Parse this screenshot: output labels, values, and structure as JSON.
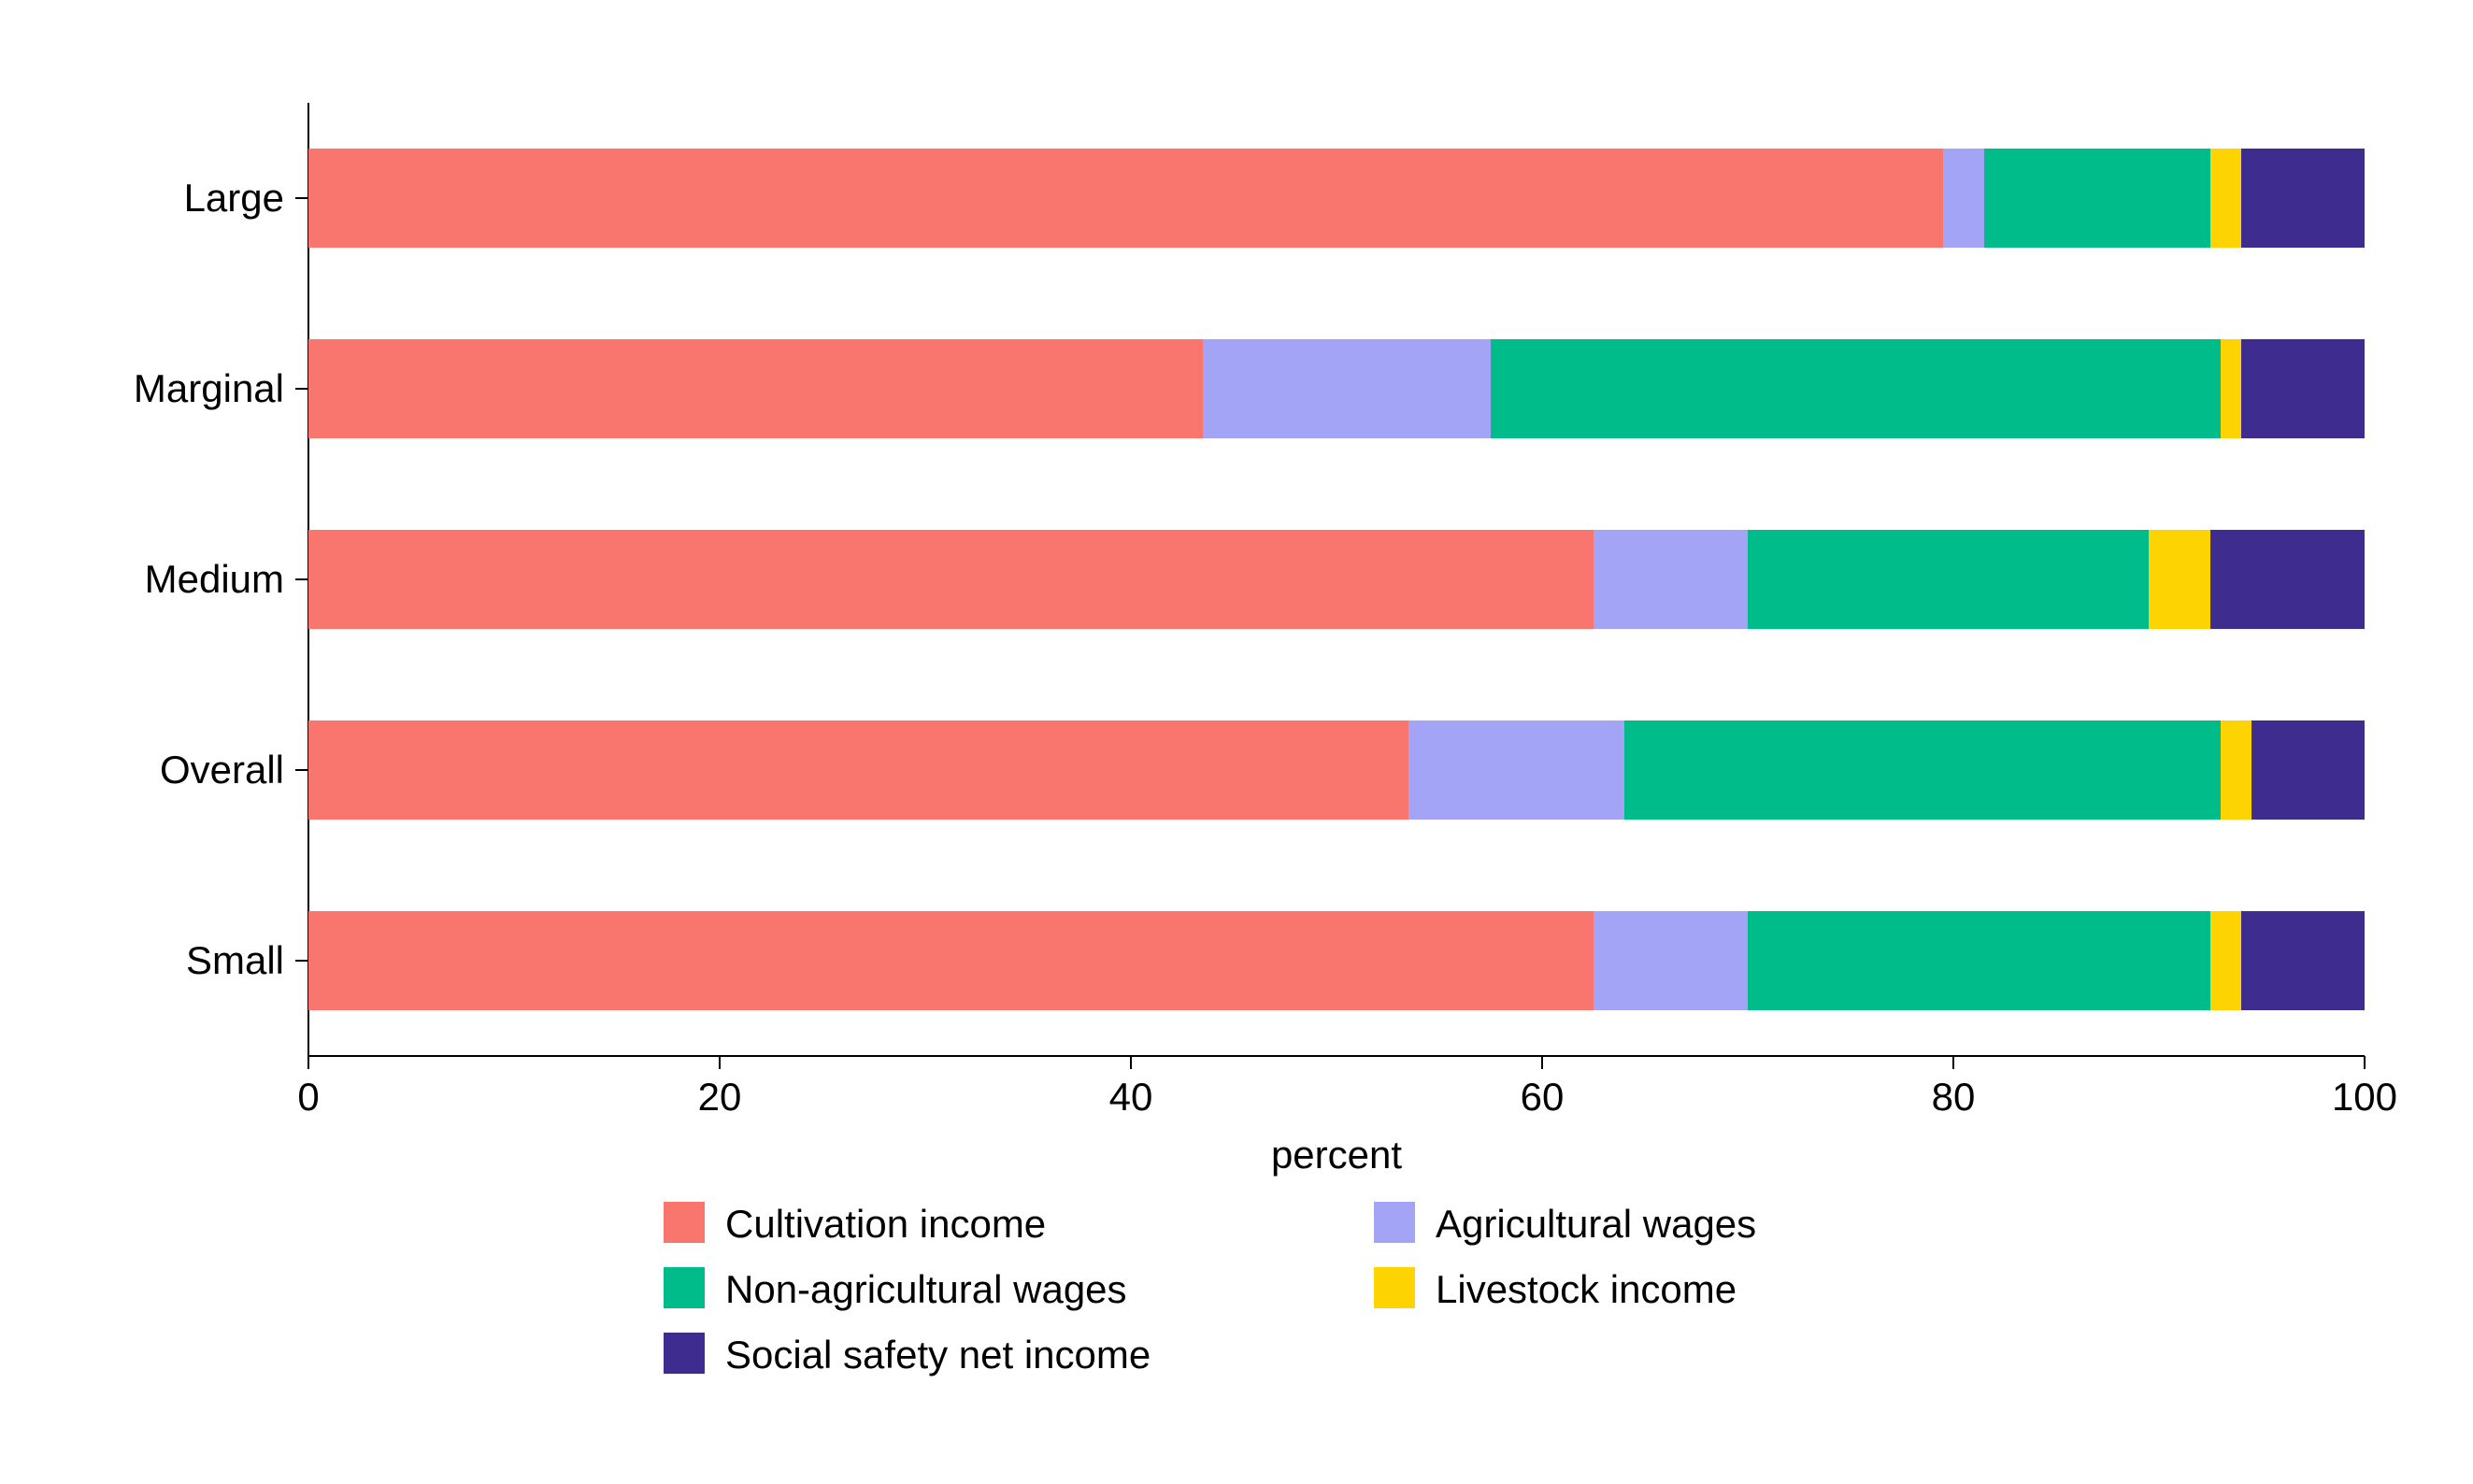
{
  "chart": {
    "type": "stacked-bar-horizontal",
    "background_color": "#ffffff",
    "axis_label": "percent",
    "axis_label_fontsize": 42,
    "tick_fontsize": 42,
    "category_fontsize": 42,
    "xlim": [
      0,
      100
    ],
    "xtick_step": 20,
    "xticks": [
      "0",
      "20",
      "40",
      "60",
      "80",
      "100"
    ],
    "bar_height_ratio": 0.52,
    "categories": [
      "Large",
      "Marginal",
      "Medium",
      "Overall",
      "Small"
    ],
    "series": [
      {
        "name": "Cultivation income",
        "color": "#f8766d"
      },
      {
        "name": "Agricultural wages",
        "color": "#a3a4f5"
      },
      {
        "name": "Non-agricultural wages",
        "color": "#00bc8b"
      },
      {
        "name": "Livestock income",
        "color": "#fdd302"
      },
      {
        "name": "Social safety net income",
        "color": "#3e2d8f"
      }
    ],
    "data": {
      "Large": [
        79.5,
        2.0,
        11.0,
        1.5,
        6.0
      ],
      "Marginal": [
        43.5,
        14.0,
        35.5,
        1.0,
        6.0
      ],
      "Medium": [
        62.5,
        7.5,
        19.5,
        3.0,
        7.5
      ],
      "Overall": [
        53.5,
        10.5,
        29.0,
        1.5,
        5.5
      ],
      "Small": [
        62.5,
        7.5,
        22.5,
        1.5,
        6.0
      ]
    },
    "legend": {
      "fontsize": 42,
      "swatch_size": 44,
      "columns": 2
    }
  }
}
